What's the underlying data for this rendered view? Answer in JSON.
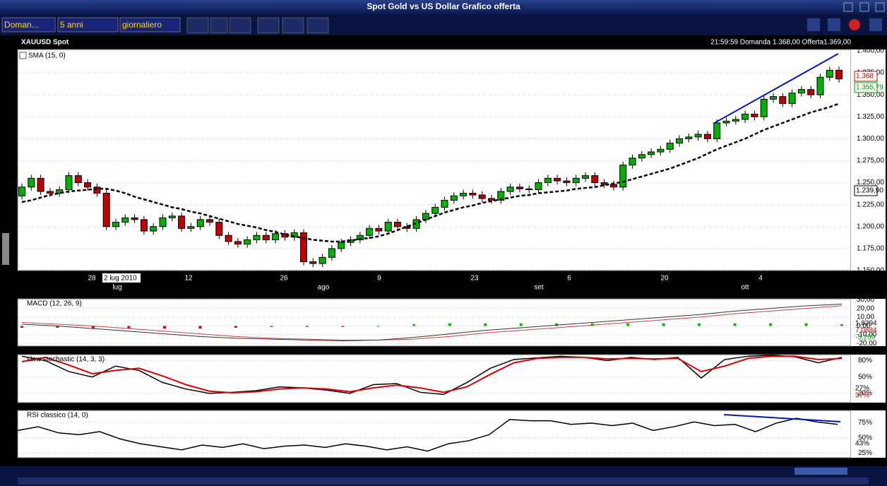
{
  "window": {
    "title": "Spot Gold vs US Dollar Grafico offerta"
  },
  "toolbar": {
    "dropdowns": [
      "Doman...",
      "5 anni",
      "giornaliero"
    ]
  },
  "header": {
    "symbol": "XAUUSD Spot",
    "quote": "21:59:59  Domanda 1.368,00  Offerta1.369,00"
  },
  "main_panel": {
    "indicator_label": "SMA (15, 0)",
    "ylim": [
      1150,
      1400
    ],
    "yticks": [
      {
        "value": 1400,
        "label": "1.400,00"
      },
      {
        "value": 1375,
        "label": "1.375,00"
      },
      {
        "value": 1350,
        "label": "1.350,00"
      },
      {
        "value": 1325,
        "label": "1.325,00"
      },
      {
        "value": 1300,
        "label": "1.300,00"
      },
      {
        "value": 1275,
        "label": "1.275,00"
      },
      {
        "value": 1250,
        "label": "1.250,00"
      },
      {
        "value": 1225,
        "label": "1.225,00"
      },
      {
        "value": 1200,
        "label": "1.200,00"
      },
      {
        "value": 1175,
        "label": "1.175,00"
      },
      {
        "value": 1150,
        "label": "1.150,00"
      }
    ],
    "first_open": 1235,
    "closes": [
      1245,
      1255,
      1240,
      1238,
      1242,
      1258,
      1250,
      1245,
      1238,
      1200,
      1205,
      1210,
      1208,
      1195,
      1200,
      1210,
      1212,
      1198,
      1200,
      1208,
      1205,
      1190,
      1183,
      1180,
      1185,
      1190,
      1185,
      1192,
      1188,
      1193,
      1160,
      1158,
      1165,
      1175,
      1182,
      1185,
      1190,
      1198,
      1195,
      1205,
      1200,
      1198,
      1208,
      1215,
      1222,
      1230,
      1235,
      1238,
      1236,
      1232,
      1230,
      1240,
      1245,
      1243,
      1242,
      1250,
      1255,
      1252,
      1250,
      1255,
      1258,
      1250,
      1248,
      1245,
      1270,
      1278,
      1282,
      1285,
      1288,
      1295,
      1300,
      1302,
      1305,
      1300,
      1318,
      1320,
      1322,
      1328,
      1325,
      1345,
      1348,
      1340,
      1352,
      1356,
      1350,
      1370,
      1378,
      1368
    ],
    "sma": [
      1228,
      1230,
      1233,
      1236,
      1238,
      1240,
      1241,
      1242,
      1243,
      1243,
      1241,
      1238,
      1234,
      1231,
      1228,
      1225,
      1222,
      1220,
      1217,
      1215,
      1212,
      1209,
      1206,
      1203,
      1201,
      1199,
      1196,
      1194,
      1191,
      1189,
      1187,
      1185,
      1184,
      1183,
      1183,
      1184,
      1186,
      1187,
      1189,
      1192,
      1196,
      1200,
      1204,
      1208,
      1212,
      1216,
      1219,
      1222,
      1224,
      1227,
      1229,
      1231,
      1233,
      1235,
      1236,
      1238,
      1239,
      1240,
      1241,
      1243,
      1244,
      1245,
      1247,
      1249,
      1251,
      1254,
      1257,
      1260,
      1263,
      1266,
      1270,
      1274,
      1278,
      1283,
      1288,
      1292,
      1296,
      1300,
      1305,
      1310,
      1314,
      1318,
      1322,
      1326,
      1330,
      1333,
      1336,
      1340
    ],
    "price_markers": [
      "1.368",
      "1.355,79",
      "1.239,90"
    ],
    "x_labels": [
      "28",
      "12",
      "26",
      "9",
      "23",
      "6",
      "20",
      "4"
    ],
    "month_labels": [
      "lug",
      "ago",
      "set",
      "ott"
    ],
    "date_marker": "2 lug 2010"
  },
  "macd_panel": {
    "label": "MACD (12, 26, 9)",
    "ylim": [
      -23,
      31
    ],
    "yticks": [
      {
        "value": 30,
        "label": "30,00"
      },
      {
        "value": 20,
        "label": "20,00"
      },
      {
        "value": 10,
        "label": "10,00"
      },
      {
        "value": 0,
        "label": "0,00"
      },
      {
        "value": -10,
        "label": "-10,00"
      },
      {
        "value": -20,
        "label": "-20,00"
      }
    ],
    "macd": [
      2,
      0,
      -3,
      -6,
      -9,
      -12,
      -14,
      -15,
      -16,
      -17,
      -16,
      -13,
      -9,
      -5,
      -2,
      1,
      4,
      7,
      10,
      13,
      17,
      20,
      23,
      25
    ],
    "signal": [
      4,
      2,
      0,
      -3,
      -6,
      -9,
      -12,
      -14,
      -15,
      -16,
      -16,
      -15,
      -12,
      -8,
      -5,
      -2,
      1,
      4,
      7,
      10,
      14,
      17,
      20,
      23
    ],
    "histogram": [
      -2,
      -2,
      -3,
      -3,
      -3,
      -3,
      -2,
      -1,
      -1,
      -1,
      0,
      2,
      3,
      3,
      3,
      3,
      3,
      3,
      3,
      3,
      3,
      3,
      3,
      2
    ],
    "markers": [
      "1,8294",
      "7,0884",
      "-5,259"
    ]
  },
  "stoch_panel": {
    "label": "slow stochastic (14, 3, 3)",
    "ylim": [
      3,
      91
    ],
    "yticks": [
      {
        "value": 80,
        "label": "80%"
      },
      {
        "value": 50,
        "label": "50%"
      },
      {
        "value": 20,
        "label": "20%"
      }
    ],
    "k": [
      88,
      80,
      60,
      50,
      70,
      62,
      40,
      28,
      20,
      22,
      25,
      32,
      30,
      26,
      20,
      36,
      38,
      22,
      18,
      40,
      66,
      82,
      85,
      88,
      86,
      80,
      86,
      82,
      86,
      48,
      82,
      88,
      90,
      87,
      76,
      86
    ],
    "d": [
      78,
      86,
      72,
      56,
      62,
      66,
      52,
      36,
      24,
      21,
      23,
      28,
      30,
      28,
      23,
      30,
      35,
      30,
      22,
      32,
      55,
      76,
      84,
      86,
      86,
      83,
      84,
      83,
      84,
      60,
      70,
      84,
      88,
      88,
      82,
      84
    ],
    "markers": [
      "27%",
      "37%"
    ]
  },
  "rsi_panel": {
    "label": "RSI classico (14, 0)",
    "ylim": [
      17,
      95
    ],
    "yticks": [
      {
        "value": 75,
        "label": "75%"
      },
      {
        "value": 50,
        "label": "50%"
      },
      {
        "value": 25,
        "label": "25%"
      }
    ],
    "rsi": [
      62,
      68,
      58,
      55,
      60,
      48,
      40,
      35,
      30,
      38,
      34,
      40,
      32,
      36,
      38,
      34,
      40,
      36,
      30,
      35,
      28,
      40,
      45,
      55,
      80,
      78,
      78,
      72,
      74,
      70,
      74,
      62,
      68,
      76,
      70,
      72,
      60,
      74,
      82,
      76,
      72
    ],
    "markers": [
      "43%"
    ]
  }
}
